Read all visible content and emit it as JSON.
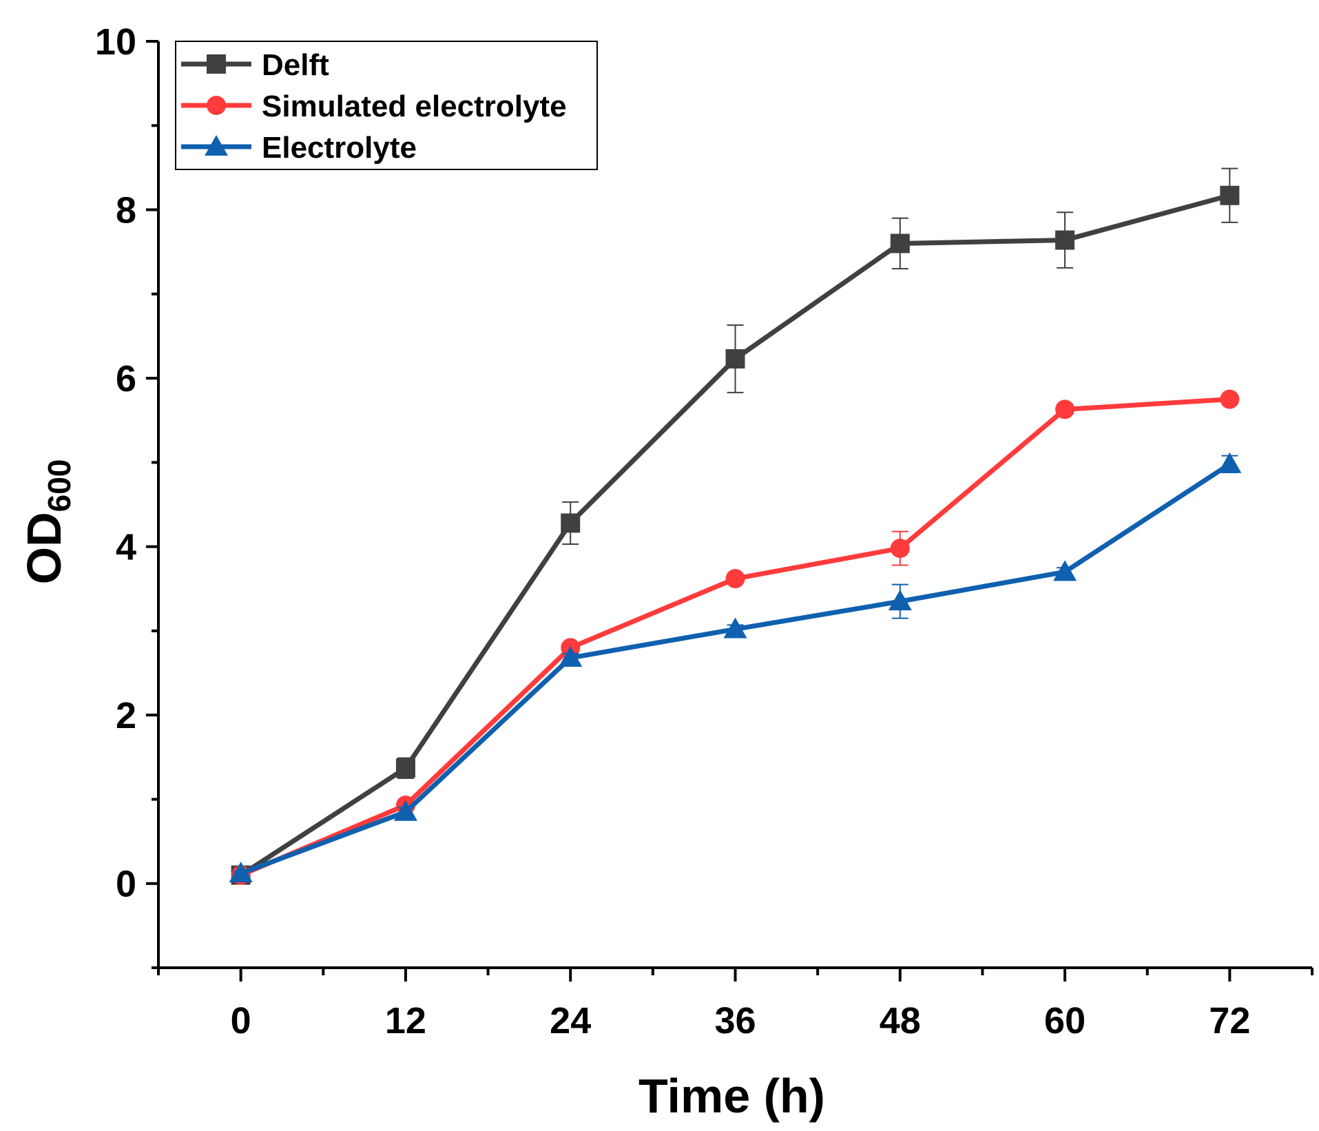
{
  "chart_data": {
    "type": "line",
    "title": "",
    "xlabel": "Time (h)",
    "ylabel": "OD",
    "ylabel_subscript": "600",
    "x": [
      0,
      12,
      24,
      36,
      48,
      60,
      72
    ],
    "xticks": [
      "0",
      "12",
      "24",
      "36",
      "48",
      "60",
      "72"
    ],
    "yticks": [
      "0",
      "2",
      "4",
      "6",
      "8",
      "10"
    ],
    "xlim": [
      -6,
      78
    ],
    "ylim": [
      -1,
      10
    ],
    "legend_position": "top-left",
    "series": [
      {
        "name": "Delft",
        "color": "#404040",
        "marker": "square",
        "values": [
          0.1,
          1.37,
          4.28,
          6.23,
          7.6,
          7.64,
          8.17
        ],
        "errors": [
          0.03,
          0.12,
          0.25,
          0.4,
          0.3,
          0.33,
          0.32
        ]
      },
      {
        "name": "Simulated electrolyte",
        "color": "#ff3b3b",
        "marker": "circle",
        "values": [
          0.1,
          0.93,
          2.8,
          3.62,
          3.98,
          5.63,
          5.75
        ],
        "errors": [
          0.02,
          0.05,
          0.05,
          0.04,
          0.2,
          0.05,
          0.04
        ]
      },
      {
        "name": "Electrolyte",
        "color": "#1060b0",
        "marker": "triangle",
        "values": [
          0.12,
          0.85,
          2.68,
          3.02,
          3.35,
          3.7,
          4.98
        ],
        "errors": [
          0.02,
          0.05,
          0.05,
          0.05,
          0.2,
          0.05,
          0.1
        ]
      }
    ]
  }
}
